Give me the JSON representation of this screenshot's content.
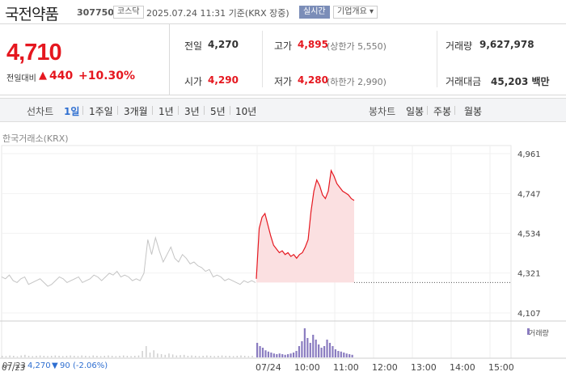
{
  "header": {
    "name": "국전약품",
    "code": "307750",
    "market": "코스닥",
    "datetime": "2025.07.24 11:31 기준(KRX 장중)",
    "live_label": "실시간",
    "corp_label": "기업개요 ▾"
  },
  "price": {
    "current": "4,710",
    "change_label": "전일대비",
    "change_arrow": "▲",
    "change_value": "440",
    "change_pct": "+10.30%"
  },
  "info": {
    "prev_close_label": "전일",
    "prev_close": "4,270",
    "high_label": "고가",
    "high": "4,895",
    "upper_limit": "(상한가 5,550)",
    "volume_label": "거래량",
    "volume": "9,627,978",
    "open_label": "시가",
    "open": "4,290",
    "low_label": "저가",
    "low": "4,280",
    "lower_limit": "(하한가 2,990)",
    "amount_label": "거래대금",
    "amount": "45,203 백만"
  },
  "tabs": {
    "line_head": "선차트",
    "line": [
      "1일",
      "1주일",
      "3개월",
      "1년",
      "3년",
      "5년",
      "10년"
    ],
    "candle_head": "봉차트",
    "candle": [
      "일봉",
      "주봉",
      "월봉"
    ]
  },
  "chart": {
    "exchange": "한국거래소(KRX)",
    "y_ticks": [
      "4,961",
      "4,747",
      "4,534",
      "4,321",
      "4,107"
    ],
    "x_labels": [
      "07/24",
      "10:00",
      "11:00",
      "12:00",
      "13:00",
      "14:00",
      "15:00"
    ],
    "x_left_label": "07/23",
    "volume_legend": "거래량",
    "colors": {
      "up": "#e5171f",
      "fill": "#fbe0e1",
      "prev": "#c4c4c4",
      "volume": "#8a7cc0"
    }
  },
  "footer": {
    "date": "07/23",
    "price": "4,270",
    "arrow": "▼",
    "change": "90",
    "pct": "(-2.06%)"
  },
  "chart_data": {
    "type": "line",
    "y_range": [
      4107,
      4961
    ],
    "prev_close": 4270,
    "prev_day_series": [
      4300,
      4290,
      4310,
      4280,
      4270,
      4290,
      4300,
      4260,
      4270,
      4280,
      4290,
      4270,
      4250,
      4260,
      4280,
      4300,
      4290,
      4270,
      4280,
      4290,
      4300,
      4270,
      4280,
      4290,
      4310,
      4300,
      4280,
      4300,
      4320,
      4310,
      4330,
      4300,
      4310,
      4300,
      4280,
      4290,
      4280,
      4320,
      4500,
      4420,
      4510,
      4440,
      4380,
      4420,
      4460,
      4400,
      4380,
      4420,
      4400,
      4370,
      4380,
      4360,
      4350,
      4330,
      4340,
      4300,
      4310,
      4300,
      4280,
      4290,
      4280,
      4270,
      4260,
      4280,
      4270,
      4280,
      4270
    ],
    "today_series": [
      4290,
      4560,
      4620,
      4640,
      4580,
      4520,
      4470,
      4450,
      4430,
      4440,
      4420,
      4430,
      4410,
      4420,
      4400,
      4420,
      4430,
      4460,
      4500,
      4650,
      4760,
      4820,
      4790,
      4740,
      4720,
      4760,
      4870,
      4840,
      4800,
      4780,
      4760,
      4750,
      4740,
      4720,
      4710
    ],
    "volume_prev": [
      0.05,
      0.04,
      0.06,
      0.05,
      0.03,
      0.06,
      0.08,
      0.05,
      0.04,
      0.05,
      0.06,
      0.05,
      0.04,
      0.05,
      0.06,
      0.05,
      0.04,
      0.05,
      0.06,
      0.05,
      0.04,
      0.06,
      0.05,
      0.04,
      0.06,
      0.05,
      0.04,
      0.05,
      0.06,
      0.05,
      0.04,
      0.05,
      0.06,
      0.05,
      0.04,
      0.05,
      0.06,
      0.2,
      0.35,
      0.15,
      0.22,
      0.12,
      0.1,
      0.08,
      0.12,
      0.09,
      0.06,
      0.07,
      0.08,
      0.05,
      0.06,
      0.05,
      0.04,
      0.05,
      0.06,
      0.05,
      0.04,
      0.05,
      0.06,
      0.05,
      0.05,
      0.04,
      0.05,
      0.06,
      0.05,
      0.04,
      0.05
    ],
    "volume_today": [
      0.45,
      0.35,
      0.3,
      0.22,
      0.18,
      0.15,
      0.12,
      0.1,
      0.12,
      0.1,
      0.08,
      0.1,
      0.12,
      0.15,
      0.2,
      0.35,
      0.5,
      0.9,
      0.6,
      0.45,
      0.7,
      0.55,
      0.4,
      0.3,
      0.35,
      0.55,
      0.45,
      0.35,
      0.25,
      0.2,
      0.18,
      0.15,
      0.12,
      0.1,
      0.08
    ]
  }
}
